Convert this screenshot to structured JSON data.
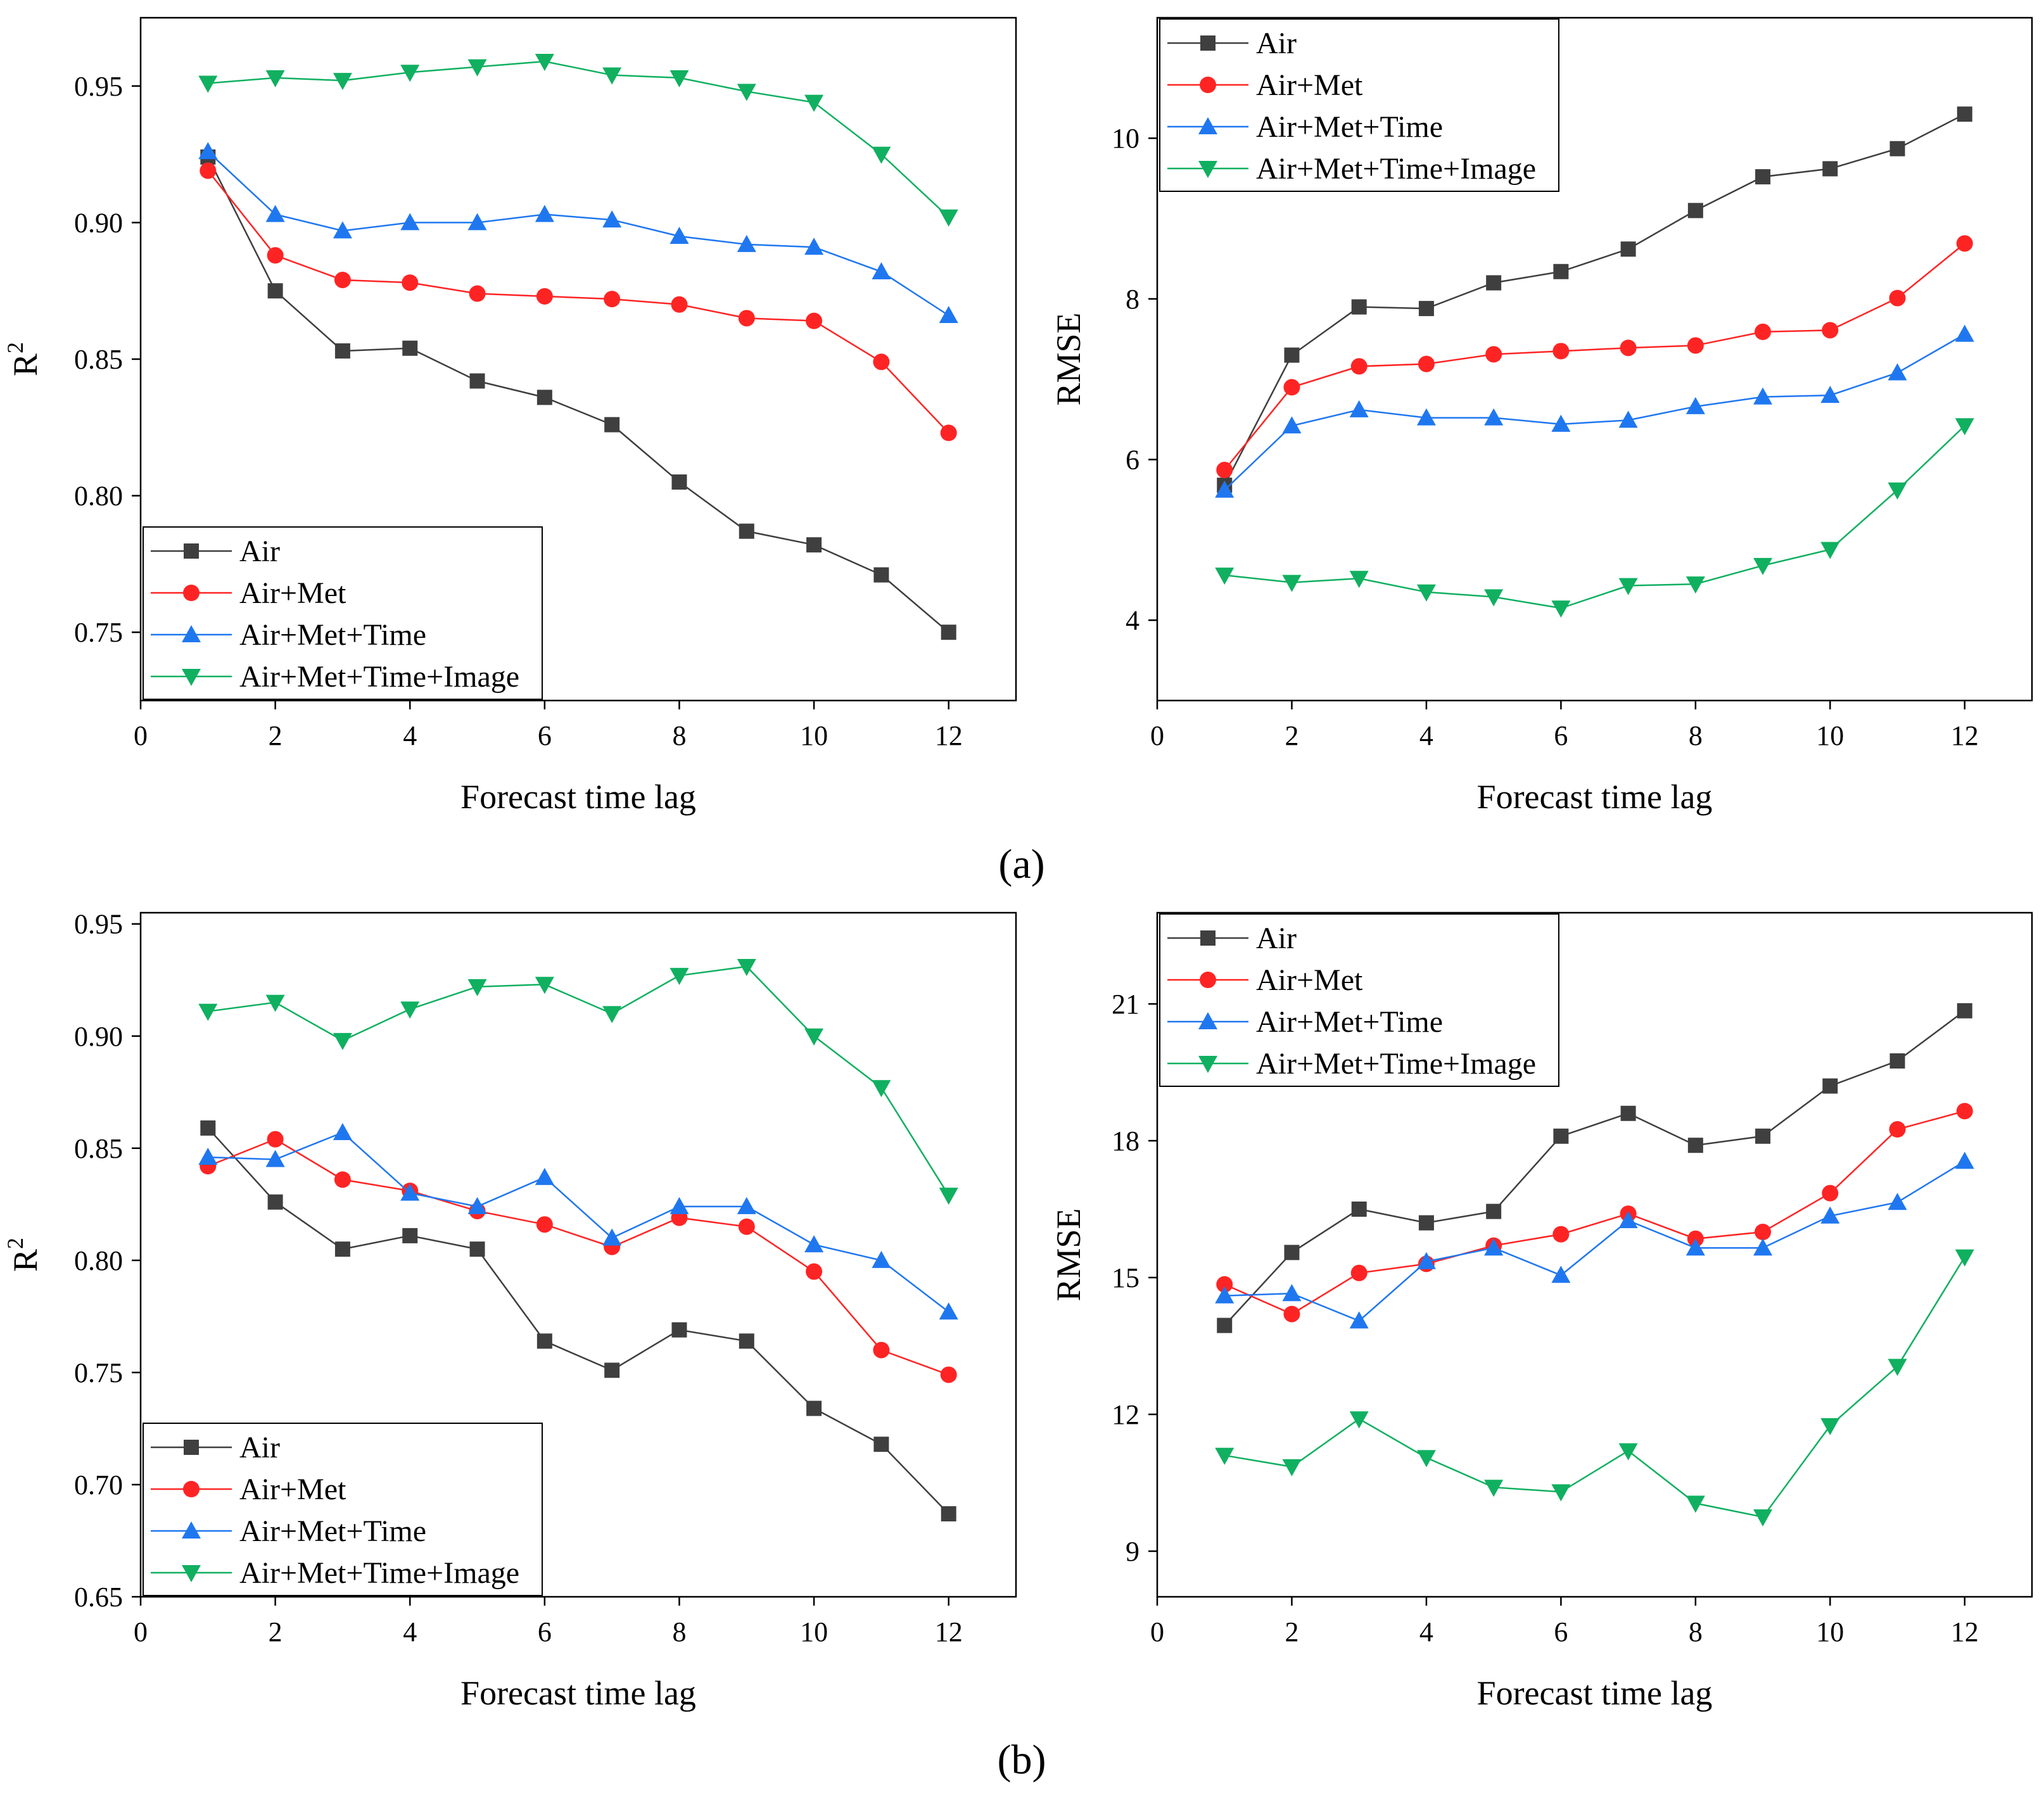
{
  "figure": {
    "panel_labels": [
      "(a)",
      "(b)"
    ]
  },
  "chart_data": [
    {
      "type": "line",
      "panel": "(a)",
      "metric": "R2",
      "xlabel": "Forecast time lag",
      "ylabel": "R2",
      "xlim": [
        0,
        13
      ],
      "ylim": [
        0.725,
        0.975
      ],
      "xticks": [
        0,
        2,
        4,
        6,
        8,
        10,
        12
      ],
      "yticks": [
        0.75,
        0.8,
        0.85,
        0.9,
        0.95
      ],
      "ytick_labels": [
        "0.75",
        "0.80",
        "0.85",
        "0.90",
        "0.95"
      ],
      "legend_position": "bottom-left",
      "x": [
        1,
        2,
        3,
        4,
        5,
        6,
        7,
        8,
        9,
        10,
        11,
        12
      ],
      "series": [
        {
          "name": "Air",
          "color": "#3f3f3f",
          "marker": "square",
          "values": [
            0.924,
            0.875,
            0.853,
            0.854,
            0.842,
            0.836,
            0.826,
            0.805,
            0.787,
            0.782,
            0.771,
            0.75
          ]
        },
        {
          "name": "Air+Met",
          "color": "#ff2424",
          "marker": "circle",
          "values": [
            0.919,
            0.888,
            0.879,
            0.878,
            0.874,
            0.873,
            0.872,
            0.87,
            0.865,
            0.864,
            0.849,
            0.823
          ]
        },
        {
          "name": "Air+Met+Time",
          "color": "#1f77f0",
          "marker": "triangle-up",
          "values": [
            0.926,
            0.903,
            0.897,
            0.9,
            0.9,
            0.903,
            0.901,
            0.895,
            0.892,
            0.891,
            0.882,
            0.866
          ]
        },
        {
          "name": "Air+Met+Time+Image",
          "color": "#10b060",
          "marker": "triangle-down",
          "values": [
            0.951,
            0.953,
            0.952,
            0.955,
            0.957,
            0.959,
            0.954,
            0.953,
            0.948,
            0.944,
            0.925,
            0.902
          ]
        }
      ]
    },
    {
      "type": "line",
      "panel": "(a)",
      "metric": "RMSE",
      "xlabel": "Forecast time lag",
      "ylabel": "RMSE",
      "xlim": [
        0,
        13
      ],
      "ylim": [
        3,
        11.5
      ],
      "xticks": [
        0,
        2,
        4,
        6,
        8,
        10,
        12
      ],
      "yticks": [
        4,
        6,
        8,
        10
      ],
      "ytick_labels": [
        "4",
        "6",
        "8",
        "10"
      ],
      "legend_position": "top-left",
      "x": [
        1,
        2,
        3,
        4,
        5,
        6,
        7,
        8,
        9,
        10,
        11,
        12
      ],
      "series": [
        {
          "name": "Air",
          "color": "#3f3f3f",
          "marker": "square",
          "values": [
            5.68,
            7.3,
            7.9,
            7.88,
            8.2,
            8.34,
            8.62,
            9.1,
            9.52,
            9.62,
            9.87,
            10.3
          ]
        },
        {
          "name": "Air+Met",
          "color": "#ff2424",
          "marker": "circle",
          "values": [
            5.87,
            6.9,
            7.16,
            7.19,
            7.31,
            7.35,
            7.39,
            7.42,
            7.59,
            7.61,
            8.01,
            8.69
          ]
        },
        {
          "name": "Air+Met+Time",
          "color": "#1f77f0",
          "marker": "triangle-up",
          "values": [
            5.62,
            6.42,
            6.62,
            6.52,
            6.52,
            6.44,
            6.49,
            6.66,
            6.78,
            6.8,
            7.08,
            7.56
          ]
        },
        {
          "name": "Air+Met+Time+Image",
          "color": "#10b060",
          "marker": "triangle-down",
          "values": [
            4.56,
            4.47,
            4.52,
            4.35,
            4.29,
            4.15,
            4.43,
            4.45,
            4.68,
            4.88,
            5.62,
            6.42
          ]
        }
      ]
    },
    {
      "type": "line",
      "panel": "(b)",
      "metric": "R2",
      "xlabel": "Forecast time lag",
      "ylabel": "R2",
      "xlim": [
        0,
        13
      ],
      "ylim": [
        0.65,
        0.955
      ],
      "xticks": [
        0,
        2,
        4,
        6,
        8,
        10,
        12
      ],
      "yticks": [
        0.65,
        0.7,
        0.75,
        0.8,
        0.85,
        0.9,
        0.95
      ],
      "ytick_labels": [
        "0.65",
        "0.70",
        "0.75",
        "0.80",
        "0.85",
        "0.90",
        "0.95"
      ],
      "legend_position": "bottom-left",
      "x": [
        1,
        2,
        3,
        4,
        5,
        6,
        7,
        8,
        9,
        10,
        11,
        12
      ],
      "series": [
        {
          "name": "Air",
          "color": "#3f3f3f",
          "marker": "square",
          "values": [
            0.859,
            0.826,
            0.805,
            0.811,
            0.805,
            0.764,
            0.751,
            0.769,
            0.764,
            0.734,
            0.718,
            0.687
          ]
        },
        {
          "name": "Air+Met",
          "color": "#ff2424",
          "marker": "circle",
          "values": [
            0.842,
            0.854,
            0.836,
            0.831,
            0.822,
            0.816,
            0.806,
            0.819,
            0.815,
            0.795,
            0.76,
            0.749
          ]
        },
        {
          "name": "Air+Met+Time",
          "color": "#1f77f0",
          "marker": "triangle-up",
          "values": [
            0.846,
            0.845,
            0.857,
            0.83,
            0.824,
            0.837,
            0.81,
            0.824,
            0.824,
            0.807,
            0.8,
            0.777
          ]
        },
        {
          "name": "Air+Met+Time+Image",
          "color": "#10b060",
          "marker": "triangle-down",
          "values": [
            0.911,
            0.915,
            0.898,
            0.912,
            0.922,
            0.923,
            0.91,
            0.927,
            0.931,
            0.9,
            0.877,
            0.829
          ]
        }
      ]
    },
    {
      "type": "line",
      "panel": "(b)",
      "metric": "RMSE",
      "xlabel": "Forecast time lag",
      "ylabel": "RMSE",
      "xlim": [
        0,
        13
      ],
      "ylim": [
        8,
        23
      ],
      "xticks": [
        0,
        2,
        4,
        6,
        8,
        10,
        12
      ],
      "yticks": [
        9,
        12,
        15,
        18,
        21
      ],
      "ytick_labels": [
        "9",
        "12",
        "15",
        "18",
        "21"
      ],
      "legend_position": "top-left",
      "x": [
        1,
        2,
        3,
        4,
        5,
        6,
        7,
        8,
        9,
        10,
        11,
        12
      ],
      "series": [
        {
          "name": "Air",
          "color": "#3f3f3f",
          "marker": "square",
          "values": [
            13.95,
            15.55,
            16.5,
            16.2,
            16.45,
            18.1,
            18.6,
            17.9,
            18.1,
            19.2,
            19.75,
            20.85
          ]
        },
        {
          "name": "Air+Met",
          "color": "#ff2424",
          "marker": "circle",
          "values": [
            14.85,
            14.2,
            15.1,
            15.3,
            15.7,
            15.95,
            16.4,
            15.85,
            16.0,
            16.85,
            18.25,
            18.65
          ]
        },
        {
          "name": "Air+Met+Time",
          "color": "#1f77f0",
          "marker": "triangle-up",
          "values": [
            14.6,
            14.65,
            14.05,
            15.35,
            15.65,
            15.05,
            16.25,
            15.65,
            15.65,
            16.35,
            16.65,
            17.55
          ]
        },
        {
          "name": "Air+Met+Time+Image",
          "color": "#10b060",
          "marker": "triangle-down",
          "values": [
            11.1,
            10.85,
            11.9,
            11.05,
            10.4,
            10.3,
            11.2,
            10.05,
            9.75,
            11.75,
            13.05,
            15.45
          ]
        }
      ]
    }
  ]
}
